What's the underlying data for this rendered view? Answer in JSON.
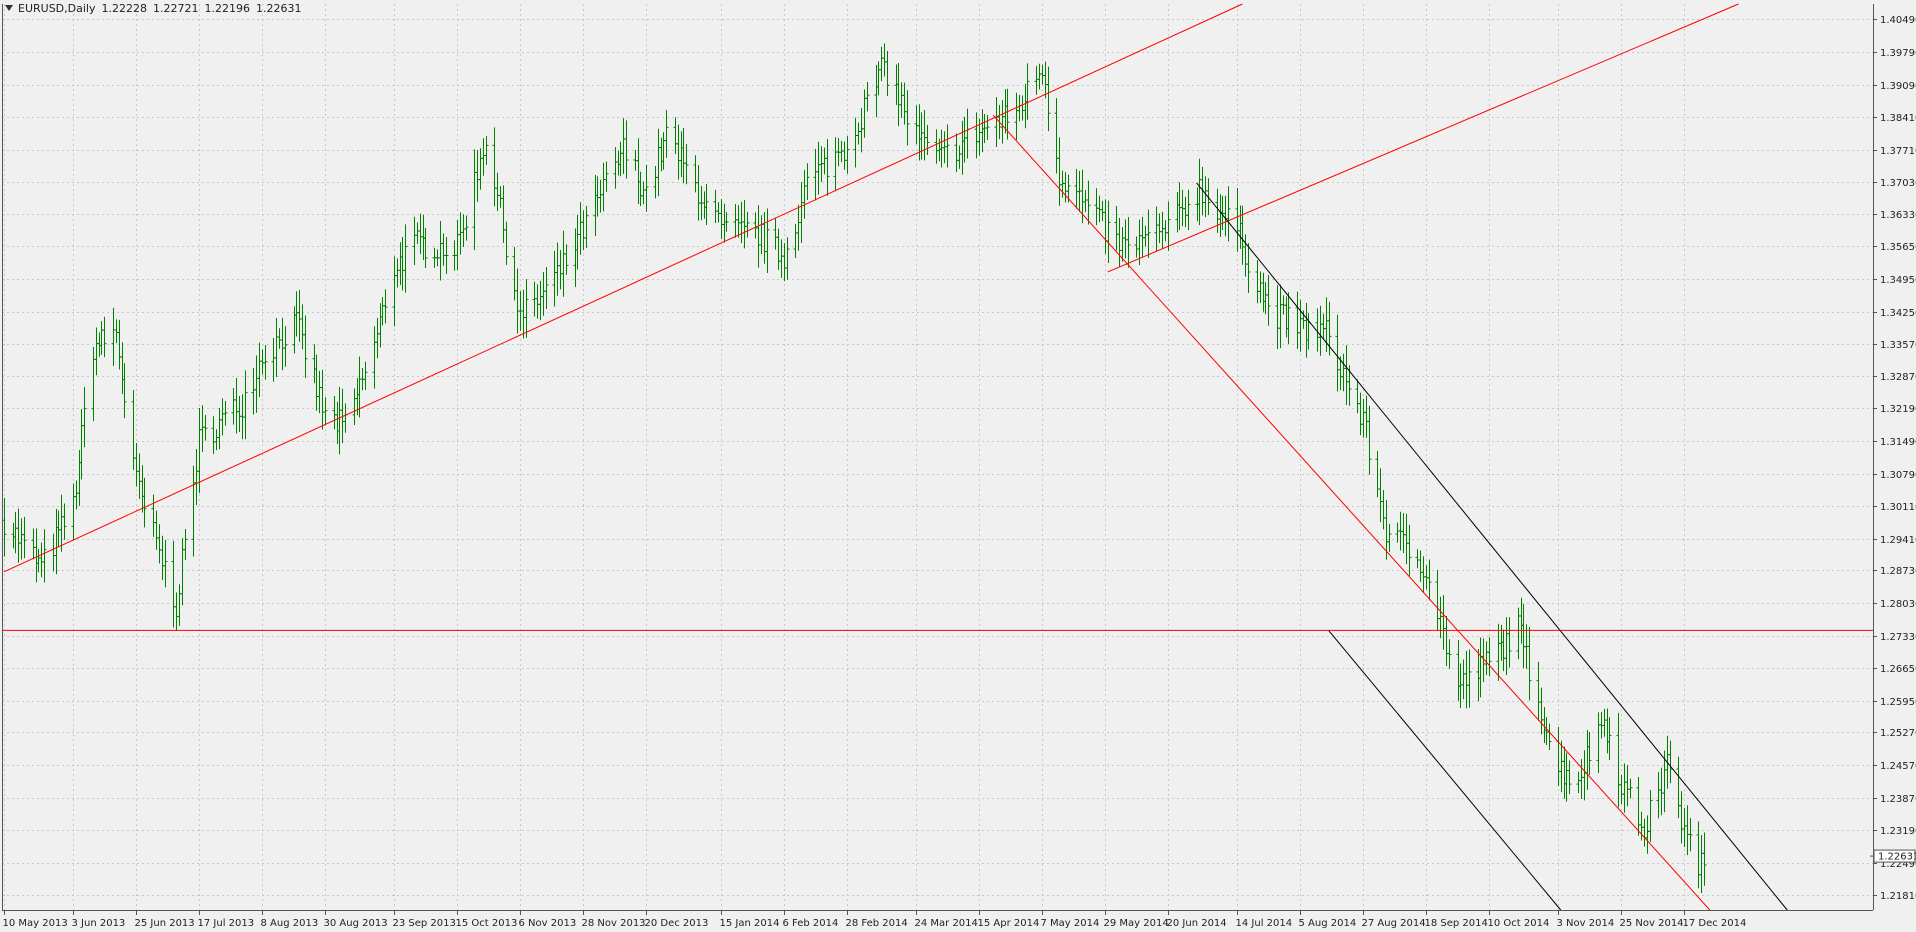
{
  "header": {
    "symbol": "EURUSD,Daily",
    "open": "1.22228",
    "high": "1.22721",
    "low": "1.22196",
    "close": "1.22631"
  },
  "chart_data": {
    "type": "bar",
    "style": "ohlc",
    "grid": true,
    "ylim": [
      1.2148,
      1.4082
    ],
    "price_ticks": [
      "1.40490",
      "1.39790",
      "1.39090",
      "1.38410",
      "1.37710",
      "1.37030",
      "1.36330",
      "1.35650",
      "1.34950",
      "1.34250",
      "1.33570",
      "1.32870",
      "1.32190",
      "1.31490",
      "1.30790",
      "1.30110",
      "1.29410",
      "1.28730",
      "1.28030",
      "1.27330",
      "1.26650",
      "1.25950",
      "1.25270",
      "1.24570",
      "1.23870",
      "1.23190",
      "1.22490",
      "1.21810"
    ],
    "current_price": "1.22631",
    "date_ticks": [
      "10 May 2013",
      "3 Jun 2013",
      "25 Jun 2013",
      "17 Jul 2013",
      "8 Aug 2013",
      "30 Aug 2013",
      "23 Sep 2013",
      "15 Oct 2013",
      "6 Nov 2013",
      "28 Nov 2013",
      "20 Dec 2013",
      "15 Jan 2014",
      "6 Feb 2014",
      "28 Feb 2014",
      "24 Mar 2014",
      "15 Apr 2014",
      "7 May 2014",
      "29 May 2014",
      "20 Jun 2014",
      "14 Jul 2014",
      "5 Aug 2014",
      "27 Aug 2014",
      "18 Sep 2014",
      "10 Oct 2014",
      "3 Nov 2014",
      "25 Nov 2014",
      "17 Dec 2014"
    ],
    "price_path": [
      [
        "10 May 2013",
        1.298
      ],
      [
        "23 May 2013",
        1.288
      ],
      [
        "3 Jun 2013",
        1.301
      ],
      [
        "10 Jun 2013",
        1.335
      ],
      [
        "18 Jun 2013",
        1.338
      ],
      [
        "25 Jun 2013",
        1.306
      ],
      [
        "9 Jul 2013",
        1.28
      ],
      [
        "17 Jul 2013",
        1.315
      ],
      [
        "1 Aug 2013",
        1.323
      ],
      [
        "8 Aug 2013",
        1.333
      ],
      [
        "20 Aug 2013",
        1.34
      ],
      [
        "30 Aug 2013",
        1.32
      ],
      [
        "6 Sep 2013",
        1.318
      ],
      [
        "16 Sep 2013",
        1.335
      ],
      [
        "23 Sep 2013",
        1.352
      ],
      [
        "1 Oct 2013",
        1.357
      ],
      [
        "15 Oct 2013",
        1.356
      ],
      [
        "25 Oct 2013",
        1.38
      ],
      [
        "6 Nov 2013",
        1.341
      ],
      [
        "12 Nov 2013",
        1.345
      ],
      [
        "20 Nov 2013",
        1.351
      ],
      [
        "28 Nov 2013",
        1.36
      ],
      [
        "12 Dec 2013",
        1.377
      ],
      [
        "20 Dec 2013",
        1.368
      ],
      [
        "27 Dec 2013",
        1.38
      ],
      [
        "15 Jan 2014",
        1.36
      ],
      [
        "28 Jan 2014",
        1.359
      ],
      [
        "6 Feb 2014",
        1.354
      ],
      [
        "14 Feb 2014",
        1.37
      ],
      [
        "28 Feb 2014",
        1.378
      ],
      [
        "13 Mar 2014",
        1.395
      ],
      [
        "24 Mar 2014",
        1.38
      ],
      [
        "1 Apr 2014",
        1.375
      ],
      [
        "15 Apr 2014",
        1.381
      ],
      [
        "28 Apr 2014",
        1.385
      ],
      [
        "7 May 2014",
        1.395
      ],
      [
        "13 May 2014",
        1.372
      ],
      [
        "29 May 2014",
        1.36
      ],
      [
        "5 Jun 2014",
        1.356
      ],
      [
        "20 Jun 2014",
        1.36
      ],
      [
        "1 Jul 2014",
        1.369
      ],
      [
        "14 Jul 2014",
        1.36
      ],
      [
        "25 Jul 2014",
        1.343
      ],
      [
        "5 Aug 2014",
        1.339
      ],
      [
        "14 Aug 2014",
        1.338
      ],
      [
        "27 Aug 2014",
        1.319
      ],
      [
        "4 Sep 2014",
        1.296
      ],
      [
        "18 Sep 2014",
        1.288
      ],
      [
        "29 Sep 2014",
        1.262
      ],
      [
        "10 Oct 2014",
        1.268
      ],
      [
        "20 Oct 2014",
        1.275
      ],
      [
        "3 Nov 2014",
        1.245
      ],
      [
        "10 Nov 2014",
        1.243
      ],
      [
        "19 Nov 2014",
        1.256
      ],
      [
        "25 Nov 2014",
        1.242
      ],
      [
        "3 Dec 2014",
        1.232
      ],
      [
        "12 Dec 2014",
        1.247
      ],
      [
        "17 Dec 2014",
        1.231
      ],
      [
        "24 Dec 2014",
        1.223
      ]
    ],
    "trendlines": [
      {
        "color": "#ff0000",
        "from": [
          "10 May 2013",
          1.287
        ],
        "to": [
          "20 Apr 2014",
          1.3838
        ],
        "extends": "right"
      },
      {
        "color": "#ff0000",
        "from": [
          "20 Apr 2014",
          1.3845
        ],
        "to": [
          "26 Dec 2014",
          1.2148
        ]
      },
      {
        "color": "#ff0000",
        "from": [
          "30 May 2014",
          1.351
        ],
        "to": [
          "14 Jul 2014",
          1.3627
        ],
        "extends": "right"
      },
      {
        "color": "#000000",
        "from": [
          "30 Jun 2014",
          1.37
        ],
        "to": [
          "22 Jan 2015",
          1.2148
        ]
      },
      {
        "color": "#000000",
        "from": [
          "15 Aug 2014",
          1.2745
        ],
        "to": [
          "4 Nov 2014",
          1.2148
        ]
      },
      {
        "color": "#ff0000",
        "horizontal": 1.2745
      }
    ],
    "colors": {
      "background": "#f0f0f0",
      "bars": "#007f00",
      "grid": "#c8c8c8",
      "axis": "#555555",
      "text": "#222222",
      "trend_red": "#ff0000",
      "trend_black": "#000000"
    }
  }
}
